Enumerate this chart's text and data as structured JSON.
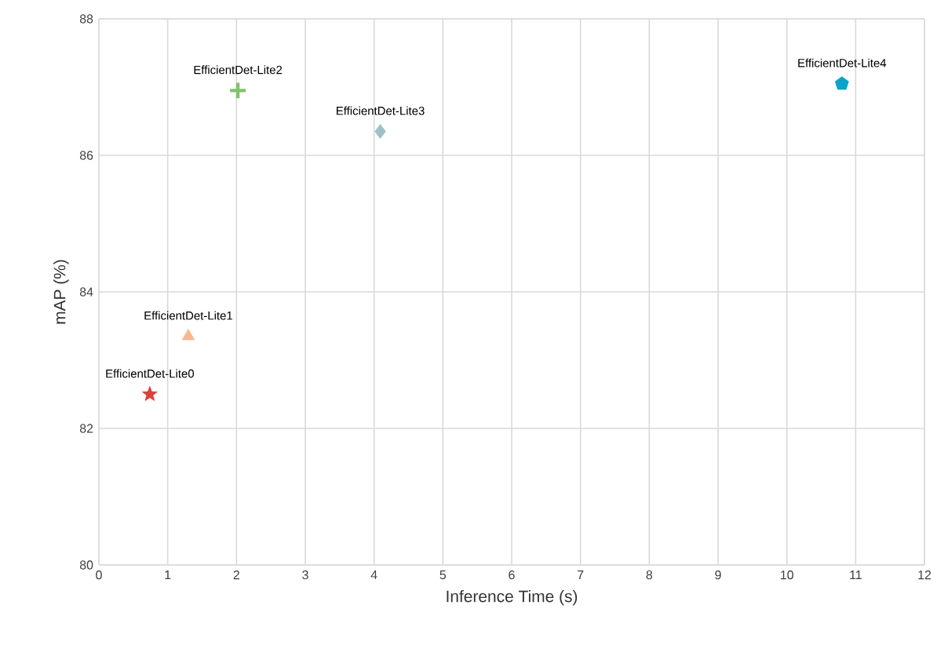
{
  "chart_data": {
    "type": "scatter",
    "xlabel": "Inference Time (s)",
    "ylabel": "mAP (%)",
    "xlim": [
      0,
      12
    ],
    "ylim": [
      80,
      88
    ],
    "xticks": [
      0,
      1,
      2,
      3,
      4,
      5,
      6,
      7,
      8,
      9,
      10,
      11,
      12
    ],
    "yticks": [
      80,
      82,
      84,
      86,
      88
    ],
    "grid": true,
    "series": [
      {
        "name": "EfficientDet-Lite0",
        "color": "#d9413a",
        "marker": "star",
        "x": [
          0.74
        ],
        "values": [
          82.5
        ]
      },
      {
        "name": "EfficientDet-Lite1",
        "color": "#f7b98c",
        "marker": "triangle",
        "x": [
          1.3
        ],
        "values": [
          83.35
        ]
      },
      {
        "name": "EfficientDet-Lite2",
        "color": "#7fc36b",
        "marker": "cross",
        "x": [
          2.02
        ],
        "values": [
          86.95
        ]
      },
      {
        "name": "EfficientDet-Lite3",
        "color": "#9fbfc4",
        "marker": "diamond",
        "x": [
          4.09
        ],
        "values": [
          86.35
        ]
      },
      {
        "name": "EfficientDet-Lite4",
        "color": "#0aa3c9",
        "x": [
          10.8
        ],
        "values": [
          87.05
        ]
      }
    ]
  }
}
